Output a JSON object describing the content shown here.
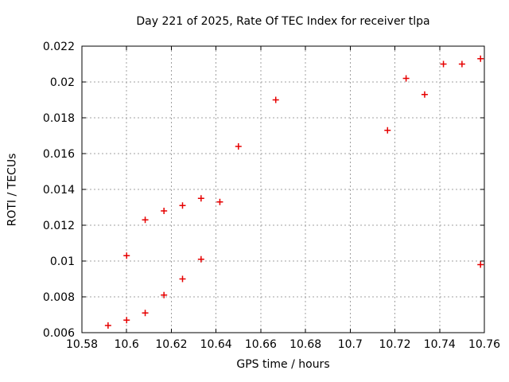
{
  "chart_data": {
    "type": "scatter",
    "title": "Day 221 of 2025, Rate Of TEC Index for receiver tlpa",
    "xlabel": "GPS time / hours",
    "ylabel": "ROTI / TECUs",
    "xlim": [
      10.58,
      10.76
    ],
    "ylim": [
      0.006,
      0.022
    ],
    "xticks": [
      10.58,
      10.6,
      10.62,
      10.64,
      10.66,
      10.68,
      10.7,
      10.72,
      10.74,
      10.76
    ],
    "xtick_labels": [
      "10.58",
      "10.6",
      "10.62",
      "10.64",
      "10.66",
      "10.68",
      "10.7",
      "10.72",
      "10.74",
      "10.76"
    ],
    "yticks": [
      0.006,
      0.008,
      0.01,
      0.012,
      0.014,
      0.016,
      0.018,
      0.02,
      0.022
    ],
    "ytick_labels": [
      "0.006",
      "0.008",
      "0.01",
      "0.012",
      "0.014",
      "0.016",
      "0.018",
      "0.02",
      "0.022"
    ],
    "grid": true,
    "legend": "none",
    "marker": "plus",
    "colors": {
      "marker": "#e60000",
      "grid": "#a0a0a0",
      "axis": "#000000",
      "background": "#ffffff"
    },
    "points": [
      [
        10.5917,
        0.0064
      ],
      [
        10.6,
        0.0067
      ],
      [
        10.6,
        0.0103
      ],
      [
        10.6083,
        0.0071
      ],
      [
        10.6083,
        0.0123
      ],
      [
        10.6167,
        0.0081
      ],
      [
        10.6167,
        0.0128
      ],
      [
        10.625,
        0.009
      ],
      [
        10.625,
        0.0131
      ],
      [
        10.6333,
        0.0101
      ],
      [
        10.6333,
        0.0135
      ],
      [
        10.6417,
        0.0133
      ],
      [
        10.65,
        0.0164
      ],
      [
        10.6667,
        0.019
      ],
      [
        10.7167,
        0.0173
      ],
      [
        10.725,
        0.0202
      ],
      [
        10.7333,
        0.0193
      ],
      [
        10.7417,
        0.021
      ],
      [
        10.75,
        0.021
      ],
      [
        10.7583,
        0.0213
      ],
      [
        10.7583,
        0.0098
      ]
    ]
  }
}
